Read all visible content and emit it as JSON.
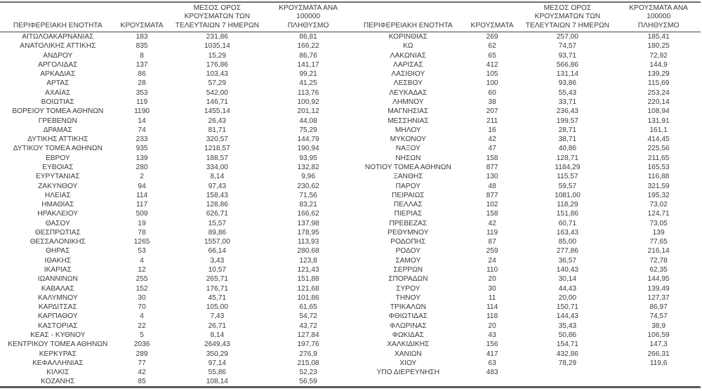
{
  "page": {
    "background": "#ffffff",
    "text_color": "#3b3b3b",
    "rule_color": "#5d5d5d"
  },
  "columns": {
    "region": "ΠΕΡΙΦΕΡΕΙΑΚΗ ΕΝΟΤΗΤΑ",
    "cases": "ΚΡΟΥΣΜΑΤΑ",
    "avg_7day_lines": [
      "ΜΕΣΟΣ ΟΡΟΣ",
      "ΚΡΟΥΣΜΑΤΩΝ ΤΩΝ",
      "ΤΕΛΕΥΤΑΙΩΝ 7 ΗΜΕΡΩΝ"
    ],
    "per_100k_lines": [
      "ΚΡΟΥΣΜΑΤΑ ΑΝΑ 100000",
      "ΠΛΗΘΥΣΜΟ"
    ]
  },
  "left_table": {
    "rows": [
      [
        "ΑΙΤΩΛΟΑΚΑΡΝΑΝΙΑΣ",
        "183",
        "231,86",
        "86,81"
      ],
      [
        "ΑΝΑΤΟΛΙΚΗΣ ΑΤΤΙΚΗΣ",
        "835",
        "1035,14",
        "166,22"
      ],
      [
        "ΑΝΔΡΟΥ",
        "8",
        "15,29",
        "86,76"
      ],
      [
        "ΑΡΓΟΛΙΔΑΣ",
        "137",
        "176,86",
        "141,17"
      ],
      [
        "ΑΡΚΑΔΙΑΣ",
        "86",
        "103,43",
        "99,21"
      ],
      [
        "ΑΡΤΑΣ",
        "28",
        "57,29",
        "41,25"
      ],
      [
        "ΑΧΑΪΑΣ",
        "353",
        "542,00",
        "113,76"
      ],
      [
        "ΒΟΙΩΤΙΑΣ",
        "119",
        "146,71",
        "100,92"
      ],
      [
        "ΒΟΡΕΙΟΥ ΤΟΜΕΑ ΑΘΗΝΩΝ",
        "1190",
        "1455,14",
        "201,12"
      ],
      [
        "ΓΡΕΒΕΝΩΝ",
        "14",
        "26,43",
        "44,08"
      ],
      [
        "ΔΡΑΜΑΣ",
        "74",
        "81,71",
        "75,29"
      ],
      [
        "ΔΥΤΙΚΗΣ ΑΤΤΙΚΗΣ",
        "233",
        "320,57",
        "144,79"
      ],
      [
        "ΔΥΤΙΚΟΥ ΤΟΜΕΑ ΑΘΗΝΩΝ",
        "935",
        "1218,57",
        "190,94"
      ],
      [
        "ΕΒΡΟΥ",
        "139",
        "188,57",
        "93,95"
      ],
      [
        "ΕΥΒΟΙΑΣ",
        "280",
        "334,00",
        "132,82"
      ],
      [
        "ΕΥΡΥΤΑΝΙΑΣ",
        "2",
        "8,14",
        "9,96"
      ],
      [
        "ΖΑΚΥΝΘΟΥ",
        "94",
        "97,43",
        "230,62"
      ],
      [
        "ΗΛΕΙΑΣ",
        "114",
        "158,43",
        "71,56"
      ],
      [
        "ΗΜΑΘΙΑΣ",
        "117",
        "128,86",
        "83,21"
      ],
      [
        "ΗΡΑΚΛΕΙΟΥ",
        "509",
        "626,71",
        "166,62"
      ],
      [
        "ΘΑΣΟΥ",
        "19",
        "15,57",
        "137,98"
      ],
      [
        "ΘΕΣΠΡΩΤΙΑΣ",
        "78",
        "89,86",
        "178,95"
      ],
      [
        "ΘΕΣΣΑΛΟΝΙΚΗΣ",
        "1265",
        "1557,00",
        "113,93"
      ],
      [
        "ΘΗΡΑΣ",
        "53",
        "66,14",
        "280,68"
      ],
      [
        "ΙΘΑΚΗΣ",
        "4",
        "3,43",
        "123,8"
      ],
      [
        "ΙΚΑΡΙΑΣ",
        "12",
        "10,57",
        "121,43"
      ],
      [
        "ΙΩΑΝΝΙΝΩΝ",
        "255",
        "265,71",
        "151,88"
      ],
      [
        "ΚΑΒΑΛΑΣ",
        "152",
        "176,71",
        "121,68"
      ],
      [
        "ΚΑΛΥΜΝΟΥ",
        "30",
        "45,71",
        "101,86"
      ],
      [
        "ΚΑΡΔΙΤΣΑΣ",
        "70",
        "105,00",
        "61,65"
      ],
      [
        "ΚΑΡΠΑΘΟΥ",
        "4",
        "7,43",
        "54,72"
      ],
      [
        "ΚΑΣΤΟΡΙΑΣ",
        "22",
        "26,71",
        "43,72"
      ],
      [
        "ΚΕΑΣ - ΚΥΘΝΟΥ",
        "5",
        "8,14",
        "127,84"
      ],
      [
        "ΚΕΝΤΡΙΚΟΥ ΤΟΜΕΑ ΑΘΗΝΩΝ",
        "2036",
        "2649,43",
        "197,76"
      ],
      [
        "ΚΕΡΚΥΡΑΣ",
        "289",
        "350,29",
        "276,9"
      ],
      [
        "ΚΕΦΑΛΛΗΝΙΑΣ",
        "77",
        "97,14",
        "215,08"
      ],
      [
        "ΚΙΛΚΙΣ",
        "42",
        "55,86",
        "52,23"
      ],
      [
        "ΚΟΖΑΝΗΣ",
        "85",
        "108,14",
        "56,59"
      ]
    ]
  },
  "right_table": {
    "rows": [
      [
        "ΚΟΡΙΝΘΙΑΣ",
        "269",
        "257,00",
        "185,41"
      ],
      [
        "ΚΩ",
        "62",
        "74,57",
        "180,25"
      ],
      [
        "ΛΑΚΩΝΙΑΣ",
        "65",
        "93,71",
        "72,92"
      ],
      [
        "ΛΑΡΙΣΑΣ",
        "412",
        "566,86",
        "144,9"
      ],
      [
        "ΛΑΣΙΘΙΟΥ",
        "105",
        "131,14",
        "139,29"
      ],
      [
        "ΛΕΣΒΟΥ",
        "100",
        "93,86",
        "115,69"
      ],
      [
        "ΛΕΥΚΑΔΑΣ",
        "60",
        "55,43",
        "253,24"
      ],
      [
        "ΛΗΜΝΟΥ",
        "38",
        "33,71",
        "220,14"
      ],
      [
        "ΜΑΓΝΗΣΙΑΣ",
        "207",
        "236,43",
        "108,94"
      ],
      [
        "ΜΕΣΣΗΝΙΑΣ",
        "211",
        "199,57",
        "131,91"
      ],
      [
        "ΜΗΛΟΥ",
        "16",
        "28,71",
        "161,1"
      ],
      [
        "ΜΥΚΟΝΟΥ",
        "42",
        "38,71",
        "414,45"
      ],
      [
        "ΝΑΞΟΥ",
        "47",
        "40,86",
        "225,56"
      ],
      [
        "ΝΗΣΩΝ",
        "158",
        "128,71",
        "211,65"
      ],
      [
        "ΝΟΤΙΟΥ ΤΟΜΕΑ ΑΘΗΝΩΝ",
        "877",
        "1184,29",
        "165,53"
      ],
      [
        "ΞΑΝΘΗΣ",
        "130",
        "115,57",
        "116,88"
      ],
      [
        "ΠΑΡΟΥ",
        "48",
        "59,57",
        "321,59"
      ],
      [
        "ΠΕΙΡΑΙΩΣ",
        "877",
        "1081,00",
        "195,32"
      ],
      [
        "ΠΕΛΛΑΣ",
        "102",
        "118,29",
        "73,02"
      ],
      [
        "ΠΙΕΡΙΑΣ",
        "158",
        "151,86",
        "124,71"
      ],
      [
        "ΠΡΕΒΕΖΑΣ",
        "42",
        "60,71",
        "73,05"
      ],
      [
        "ΡΕΘΥΜΝΟΥ",
        "119",
        "163,43",
        "139"
      ],
      [
        "ΡΟΔΟΠΗΣ",
        "87",
        "85,00",
        "77,65"
      ],
      [
        "ΡΟΔΟΥ",
        "259",
        "277,86",
        "216,14"
      ],
      [
        "ΣΑΜΟΥ",
        "24",
        "36,57",
        "72,78"
      ],
      [
        "ΣΕΡΡΩΝ",
        "110",
        "140,43",
        "62,35"
      ],
      [
        "ΣΠΟΡΑΔΩΝ",
        "20",
        "30,14",
        "144,95"
      ],
      [
        "ΣΥΡΟΥ",
        "30",
        "44,43",
        "139,49"
      ],
      [
        "ΤΗΝΟΥ",
        "11",
        "20,00",
        "127,37"
      ],
      [
        "ΤΡΙΚΑΛΩΝ",
        "114",
        "150,71",
        "86,97"
      ],
      [
        "ΦΘΙΩΤΙΔΑΣ",
        "118",
        "144,43",
        "74,57"
      ],
      [
        "ΦΛΩΡΙΝΑΣ",
        "20",
        "35,43",
        "38,9"
      ],
      [
        "ΦΩΚΙΔΑΣ",
        "43",
        "50,86",
        "106,59"
      ],
      [
        "ΧΑΛΚΙΔΙΚΗΣ",
        "156",
        "154,71",
        "147,3"
      ],
      [
        "ΧΑΝΙΩΝ",
        "417",
        "432,86",
        "266,31"
      ],
      [
        "ΧΙΟΥ",
        "63",
        "78,29",
        "119,6"
      ],
      [
        "ΥΠΟ ΔΙΕΡΕΥΝΗΣΗ",
        "483",
        "",
        ""
      ]
    ]
  }
}
